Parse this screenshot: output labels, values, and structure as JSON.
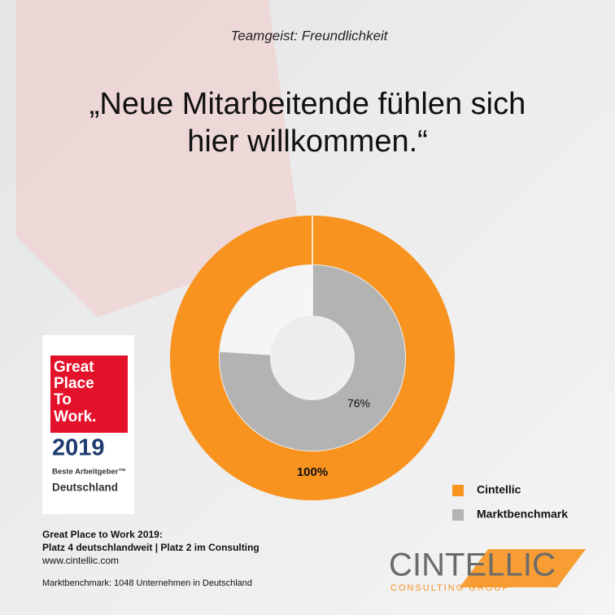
{
  "chart_data": {
    "type": "donut",
    "subtitle": "Teamgeist: Freundlichkeit",
    "title_lines": [
      "„Neue Mitarbeitende fühlen sich",
      "hier willkommen.“"
    ],
    "series": [
      {
        "name": "Cintellic",
        "color": "#f7931e",
        "values": [
          100
        ],
        "value_labels": [
          "100%"
        ]
      },
      {
        "name": "Marktbenchmark",
        "color": "#b3b3b3",
        "values": [
          76
        ],
        "value_labels": [
          "76%"
        ]
      }
    ],
    "legend": "lower right"
  },
  "badge": {
    "lines": [
      "Great",
      "Place",
      "To",
      "Work."
    ],
    "year": "2019",
    "claim": "Beste Arbeitgeber™",
    "country": "Deutschland"
  },
  "footer": {
    "lines": [
      "Great Place to Work 2019:",
      "Platz 4 deutschlandweit |  Platz 2 im Consulting"
    ],
    "url": "www.cintellic.com",
    "note": "Marktbenchmark: 1048 Unternehmen in Deutschland"
  },
  "logo": {
    "name": "CINTELLIC",
    "tagline": "CONSULTING GROUP"
  }
}
